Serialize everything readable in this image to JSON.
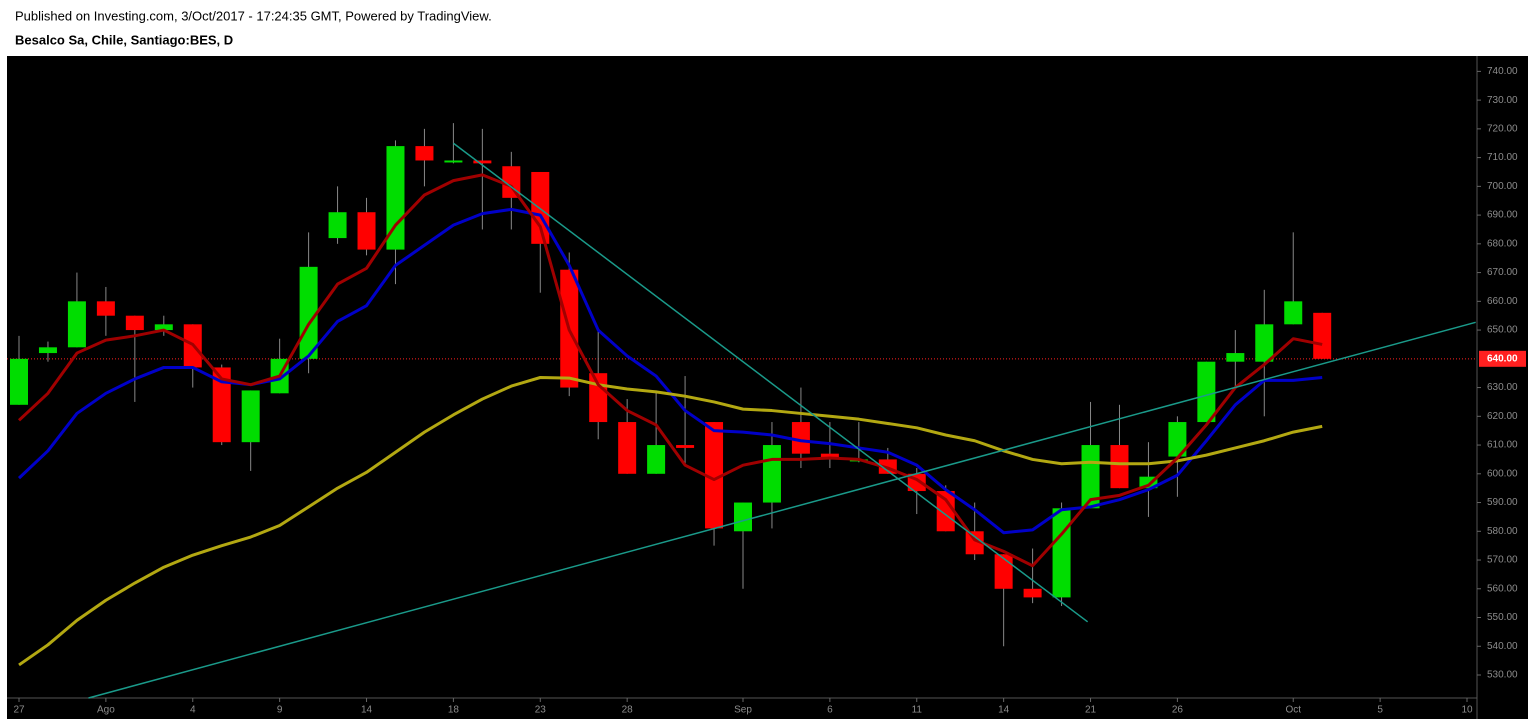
{
  "header": {
    "published": "Published on Investing.com, 3/Oct/2017 - 17:24:35 GMT, Powered by TradingView."
  },
  "chart_data": {
    "type": "candlestick",
    "title": "Besalco Sa, Chile, Santiago:BES, D",
    "categories": [
      "27",
      null,
      null,
      "Ago",
      null,
      null,
      "4",
      null,
      null,
      "9",
      null,
      null,
      "14",
      null,
      null,
      "18",
      null,
      null,
      "23",
      null,
      null,
      "28",
      null,
      null,
      null,
      "Sep",
      null,
      null,
      "6",
      null,
      null,
      "11",
      null,
      null,
      "14",
      null,
      null,
      "21",
      null,
      null,
      "26",
      null,
      null,
      null,
      "Oct",
      null,
      null,
      "5",
      null,
      null,
      "10"
    ],
    "open": [
      624,
      642,
      644,
      660,
      655,
      650,
      652,
      637,
      611,
      628,
      640,
      682,
      691,
      678,
      714,
      709,
      709,
      707,
      705,
      671,
      635,
      618,
      600,
      610,
      618,
      580,
      590,
      618,
      607,
      605,
      605,
      600,
      594,
      580,
      572,
      560,
      557,
      588,
      610,
      595,
      606,
      618,
      639,
      639,
      652,
      656,
      null,
      null,
      null,
      null,
      null
    ],
    "high": [
      648,
      646,
      670,
      665,
      655,
      655,
      652,
      638,
      629,
      647,
      684,
      700,
      696,
      716,
      720,
      722,
      720,
      712,
      705,
      677,
      650,
      626,
      629,
      634,
      618,
      590,
      618,
      630,
      618,
      618,
      609,
      602,
      596,
      590,
      572,
      574,
      590,
      625,
      624,
      611,
      620,
      639,
      650,
      664,
      684,
      656,
      null,
      null,
      null,
      null,
      null
    ],
    "low": [
      624,
      639,
      644,
      648,
      625,
      648,
      630,
      610,
      601,
      628,
      635,
      680,
      676,
      666,
      700,
      708,
      685,
      685,
      663,
      627,
      612,
      600,
      600,
      603,
      575,
      560,
      581,
      602,
      602,
      604,
      600,
      586,
      580,
      570,
      540,
      555,
      554,
      588,
      595,
      585,
      592,
      618,
      630,
      620,
      652,
      640,
      null,
      null,
      null,
      null,
      null
    ],
    "close": [
      640,
      644,
      660,
      655,
      650,
      652,
      637,
      611,
      629,
      640,
      672,
      691,
      678,
      714,
      709,
      709,
      708,
      696,
      680,
      630,
      618,
      600,
      610,
      609,
      581,
      590,
      610,
      607,
      605,
      605,
      600,
      594,
      580,
      572,
      560,
      557,
      588,
      610,
      595,
      599,
      618,
      639,
      642,
      652,
      660,
      640,
      null,
      null,
      null,
      null,
      null
    ],
    "up_color": "#00dd00",
    "down_color": "#ff0000",
    "overlays": [
      {
        "color": "#0000c8",
        "values": [
          598.5,
          608,
          621,
          628,
          633,
          637,
          637,
          632,
          631,
          633,
          641,
          653,
          658.5,
          672.5,
          679.5,
          686.5,
          690.5,
          692,
          690,
          672.5,
          650,
          641,
          634,
          622,
          615,
          614.5,
          613.5,
          611.5,
          610.5,
          609,
          607.5,
          603,
          594.5,
          587.5,
          579.5,
          580.5,
          587.5,
          588.5,
          591,
          594.5,
          599.5,
          611.5,
          624,
          632.5,
          632.5,
          633.5,
          null,
          null,
          null,
          null,
          null
        ]
      },
      {
        "color": "#b3a812",
        "values": [
          533.5,
          540.5,
          549,
          556,
          562,
          567.5,
          571.7,
          575,
          578,
          582,
          588.5,
          595,
          600.5,
          607.5,
          614.5,
          620.5,
          626,
          630.5,
          633.5,
          633.3,
          631,
          629.5,
          628.5,
          627,
          625,
          622.5,
          622,
          621,
          620,
          619,
          617.5,
          616,
          613.5,
          611.5,
          608,
          605,
          603.5,
          604,
          603.5,
          603.5,
          604.5,
          606.5,
          609,
          611.5,
          614.5,
          616.5,
          null,
          null,
          null,
          null,
          null
        ]
      },
      {
        "color": "#a00000",
        "values": [
          618.6,
          628,
          642,
          646.5,
          648,
          650,
          645,
          633,
          631,
          634,
          652,
          666,
          671.5,
          686.5,
          697,
          702,
          704,
          700,
          686,
          650,
          631,
          622,
          617,
          603,
          598,
          603,
          605,
          605,
          605.5,
          605,
          602,
          598,
          591,
          577,
          573,
          568,
          579,
          591,
          592.5,
          596,
          605.5,
          617,
          630,
          638,
          647,
          645,
          null,
          null,
          null,
          null,
          null
        ]
      }
    ],
    "trendlines": [
      {
        "color": "#1a9a8a",
        "points": [
          [
            15,
            715
          ],
          [
            36.9,
            548.5
          ]
        ]
      },
      {
        "color": "#1a9a8a",
        "points": [
          [
            2.4,
            522
          ],
          [
            50.3,
            652.7
          ]
        ]
      }
    ],
    "last_price": {
      "value": 640,
      "label": "640.00",
      "color": "#ff2020"
    },
    "ylim": [
      522,
      745
    ],
    "yticks": [
      {
        "value": 530,
        "label": "530.00"
      },
      {
        "value": 540,
        "label": "540.00"
      },
      {
        "value": 550,
        "label": "550.00"
      },
      {
        "value": 560,
        "label": "560.00"
      },
      {
        "value": 570,
        "label": "570.00"
      },
      {
        "value": 580,
        "label": "580.00"
      },
      {
        "value": 590,
        "label": "590.00"
      },
      {
        "value": 600,
        "label": "600.00"
      },
      {
        "value": 610,
        "label": "610.00"
      },
      {
        "value": 620,
        "label": "620.00"
      },
      {
        "value": 630,
        "label": "630.00"
      },
      {
        "value": 650,
        "label": "650.00"
      },
      {
        "value": 660,
        "label": "660.00"
      },
      {
        "value": 670,
        "label": "670.00"
      },
      {
        "value": 680,
        "label": "680.00"
      },
      {
        "value": 690,
        "label": "690.00"
      },
      {
        "value": 700,
        "label": "700.00"
      },
      {
        "value": 710,
        "label": "710.00"
      },
      {
        "value": 720,
        "label": "720.00"
      },
      {
        "value": 730,
        "label": "730.00"
      },
      {
        "value": 740,
        "label": "740.00"
      }
    ],
    "grid": false
  }
}
